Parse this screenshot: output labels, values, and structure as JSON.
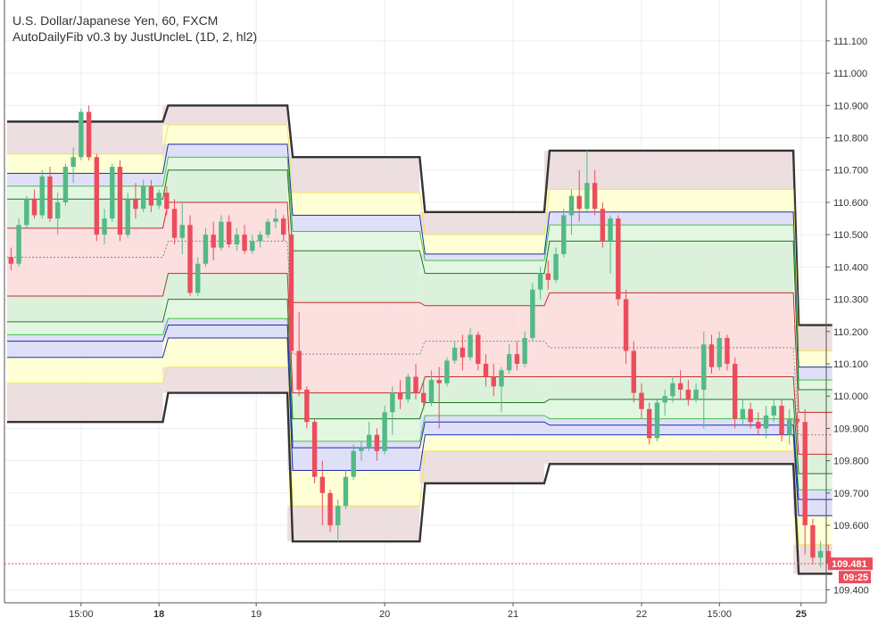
{
  "chart_data": {
    "type": "candlestick",
    "title": "U.S. Dollar/Japanese Yen, 60, FXCM",
    "subtitle": "AutoDailyFib v0.3 by JustUncleL (1D, 2, hl2)",
    "ylim": [
      109.36,
      111.21
    ],
    "xlim": [
      0,
      105
    ],
    "grid": true,
    "y_ticks": [
      {
        "v": 111.1,
        "label": "111.100"
      },
      {
        "v": 111.0,
        "label": "111.000"
      },
      {
        "v": 110.9,
        "label": "110.900"
      },
      {
        "v": 110.8,
        "label": "110.800"
      },
      {
        "v": 110.7,
        "label": "110.700"
      },
      {
        "v": 110.6,
        "label": "110.600"
      },
      {
        "v": 110.5,
        "label": "110.500"
      },
      {
        "v": 110.4,
        "label": "110.400"
      },
      {
        "v": 110.3,
        "label": "110.300"
      },
      {
        "v": 110.2,
        "label": "110.200"
      },
      {
        "v": 110.1,
        "label": "110.100"
      },
      {
        "v": 110.0,
        "label": "110.000"
      },
      {
        "v": 109.9,
        "label": "109.900"
      },
      {
        "v": 109.8,
        "label": "109.800"
      },
      {
        "v": 109.7,
        "label": "109.700"
      },
      {
        "v": 109.6,
        "label": "109.600"
      },
      {
        "v": 109.4,
        "label": "109.400"
      }
    ],
    "x_ticks": [
      {
        "x": 9.5,
        "label": "15:00",
        "bold": false
      },
      {
        "x": 19.5,
        "label": "18",
        "bold": true
      },
      {
        "x": 32,
        "label": "19",
        "bold": false
      },
      {
        "x": 48.5,
        "label": "20",
        "bold": false
      },
      {
        "x": 65,
        "label": "21",
        "bold": false
      },
      {
        "x": 81.5,
        "label": "22",
        "bold": false
      },
      {
        "x": 91.5,
        "label": "15:00",
        "bold": false
      },
      {
        "x": 102,
        "label": "25",
        "bold": true
      }
    ],
    "current_price": {
      "value": 109.481,
      "label": "109.481",
      "time_label": "09:25"
    },
    "colors": {
      "up": "#53b987",
      "down": "#eb4d5c",
      "grid": "#e9edf0",
      "axis": "#555555"
    },
    "fib_sessions": [
      {
        "x0": 0,
        "x1": 20,
        "levels": [
          110.85,
          110.75,
          110.69,
          110.65,
          110.61,
          110.52,
          110.43,
          110.31,
          110.23,
          110.19,
          110.17,
          110.12,
          110.04,
          109.92
        ]
      },
      {
        "x0": 20,
        "x1": 36,
        "levels": [
          110.9,
          110.84,
          110.78,
          110.74,
          110.7,
          110.6,
          110.48,
          110.38,
          110.3,
          110.24,
          110.22,
          110.18,
          110.09,
          110.01
        ]
      },
      {
        "x0": 36,
        "x1": 53,
        "levels": [
          110.74,
          110.63,
          110.56,
          110.51,
          110.45,
          110.29,
          110.13,
          110.01,
          109.93,
          109.86,
          109.84,
          109.77,
          109.66,
          109.55
        ]
      },
      {
        "x0": 53,
        "x1": 69,
        "levels": [
          110.57,
          110.5,
          110.44,
          110.42,
          110.38,
          110.28,
          110.17,
          110.06,
          109.98,
          109.94,
          109.92,
          109.88,
          109.83,
          109.73
        ]
      },
      {
        "x0": 69,
        "x1": 101,
        "levels": [
          110.76,
          110.64,
          110.57,
          110.53,
          110.48,
          110.32,
          110.15,
          110.06,
          109.99,
          109.93,
          109.91,
          109.88,
          109.83,
          109.79
        ]
      },
      {
        "x0": 101,
        "x1": 106,
        "levels": [
          110.22,
          110.14,
          110.09,
          110.05,
          110.02,
          109.95,
          109.88,
          109.82,
          109.76,
          109.71,
          109.68,
          109.63,
          109.54,
          109.45
        ]
      }
    ],
    "candles": [
      [
        110.43,
        110.46,
        110.39,
        110.41
      ],
      [
        110.41,
        110.55,
        110.4,
        110.53
      ],
      [
        110.53,
        110.62,
        110.52,
        110.61
      ],
      [
        110.61,
        110.64,
        110.55,
        110.56
      ],
      [
        110.56,
        110.7,
        110.55,
        110.68
      ],
      [
        110.68,
        110.71,
        110.54,
        110.55
      ],
      [
        110.55,
        110.63,
        110.5,
        110.6
      ],
      [
        110.6,
        110.72,
        110.59,
        110.71
      ],
      [
        110.71,
        110.77,
        110.66,
        110.74
      ],
      [
        110.74,
        110.89,
        110.73,
        110.88
      ],
      [
        110.88,
        110.9,
        110.73,
        110.74
      ],
      [
        110.74,
        110.75,
        110.48,
        110.5
      ],
      [
        110.5,
        110.58,
        110.47,
        110.55
      ],
      [
        110.55,
        110.72,
        110.54,
        110.71
      ],
      [
        110.71,
        110.73,
        110.48,
        110.5
      ],
      [
        110.5,
        110.63,
        110.49,
        110.61
      ],
      [
        110.61,
        110.66,
        110.55,
        110.58
      ],
      [
        110.58,
        110.67,
        110.57,
        110.65
      ],
      [
        110.65,
        110.67,
        110.57,
        110.59
      ],
      [
        110.59,
        110.64,
        110.58,
        110.63
      ],
      [
        110.63,
        110.65,
        110.56,
        110.58
      ],
      [
        110.58,
        110.61,
        110.47,
        110.49
      ],
      [
        110.49,
        110.6,
        110.44,
        110.53
      ],
      [
        110.53,
        110.56,
        110.31,
        110.32
      ],
      [
        110.32,
        110.43,
        110.31,
        110.41
      ],
      [
        110.41,
        110.52,
        110.4,
        110.5
      ],
      [
        110.5,
        110.54,
        110.42,
        110.46
      ],
      [
        110.46,
        110.56,
        110.45,
        110.54
      ],
      [
        110.54,
        110.56,
        110.46,
        110.47
      ],
      [
        110.47,
        110.52,
        110.45,
        110.5
      ],
      [
        110.5,
        110.53,
        110.44,
        110.45
      ],
      [
        110.45,
        110.5,
        110.44,
        110.48
      ],
      [
        110.48,
        110.51,
        110.46,
        110.5
      ],
      [
        110.5,
        110.55,
        110.49,
        110.54
      ],
      [
        110.54,
        110.58,
        110.52,
        110.55
      ],
      [
        110.55,
        110.56,
        110.48,
        110.5
      ],
      [
        110.5,
        110.52,
        110.12,
        110.14
      ],
      [
        110.14,
        110.26,
        110.0,
        110.02
      ],
      [
        110.02,
        110.03,
        109.9,
        109.92
      ],
      [
        109.92,
        109.93,
        109.73,
        109.75
      ],
      [
        109.75,
        109.8,
        109.6,
        109.7
      ],
      [
        109.7,
        109.71,
        109.58,
        109.6
      ],
      [
        109.6,
        109.68,
        109.55,
        109.66
      ],
      [
        109.66,
        109.77,
        109.65,
        109.75
      ],
      [
        109.75,
        109.85,
        109.74,
        109.83
      ],
      [
        109.83,
        109.86,
        109.8,
        109.84
      ],
      [
        109.84,
        109.92,
        109.83,
        109.88
      ],
      [
        109.88,
        109.9,
        109.8,
        109.83
      ],
      [
        109.83,
        109.97,
        109.82,
        109.95
      ],
      [
        109.95,
        110.03,
        109.88,
        110.01
      ],
      [
        110.01,
        110.05,
        109.96,
        109.99
      ],
      [
        109.99,
        110.07,
        109.98,
        110.06
      ],
      [
        110.06,
        110.1,
        109.99,
        110.01
      ],
      [
        110.01,
        110.05,
        109.96,
        109.98
      ],
      [
        109.98,
        110.08,
        109.97,
        110.05
      ],
      [
        110.05,
        110.09,
        109.9,
        110.04
      ],
      [
        110.04,
        110.12,
        110.03,
        110.11
      ],
      [
        110.11,
        110.17,
        110.1,
        110.15
      ],
      [
        110.15,
        110.19,
        110.08,
        110.12
      ],
      [
        110.12,
        110.21,
        110.11,
        110.19
      ],
      [
        110.19,
        110.2,
        110.08,
        110.1
      ],
      [
        110.1,
        110.13,
        110.03,
        110.06
      ],
      [
        110.06,
        110.1,
        110.0,
        110.03
      ],
      [
        110.03,
        110.09,
        109.95,
        110.08
      ],
      [
        110.08,
        110.16,
        110.07,
        110.13
      ],
      [
        110.13,
        110.17,
        110.08,
        110.1
      ],
      [
        110.1,
        110.2,
        110.09,
        110.18
      ],
      [
        110.18,
        110.35,
        110.17,
        110.33
      ],
      [
        110.33,
        110.4,
        110.3,
        110.38
      ],
      [
        110.38,
        110.42,
        110.33,
        110.36
      ],
      [
        110.36,
        110.46,
        110.35,
        110.44
      ],
      [
        110.44,
        110.58,
        110.43,
        110.56
      ],
      [
        110.56,
        110.64,
        110.5,
        110.62
      ],
      [
        110.62,
        110.7,
        110.54,
        110.58
      ],
      [
        110.58,
        110.76,
        110.57,
        110.66
      ],
      [
        110.66,
        110.7,
        110.56,
        110.58
      ],
      [
        110.58,
        110.6,
        110.46,
        110.48
      ],
      [
        110.48,
        110.56,
        110.38,
        110.55
      ],
      [
        110.55,
        110.56,
        110.28,
        110.3
      ],
      [
        110.3,
        110.33,
        110.1,
        110.14
      ],
      [
        110.14,
        110.17,
        109.98,
        110.01
      ],
      [
        110.01,
        110.04,
        109.93,
        109.96
      ],
      [
        109.96,
        109.98,
        109.85,
        109.87
      ],
      [
        109.87,
        109.99,
        109.86,
        109.98
      ],
      [
        109.98,
        110.02,
        109.94,
        110.0
      ],
      [
        110.0,
        110.06,
        109.98,
        110.04
      ],
      [
        110.04,
        110.08,
        109.99,
        110.02
      ],
      [
        110.02,
        110.05,
        109.97,
        109.99
      ],
      [
        109.99,
        110.04,
        109.98,
        110.02
      ],
      [
        110.02,
        110.2,
        109.9,
        110.16
      ],
      [
        110.16,
        110.19,
        110.07,
        110.09
      ],
      [
        110.09,
        110.2,
        110.08,
        110.18
      ],
      [
        110.18,
        110.19,
        110.08,
        110.1
      ],
      [
        110.1,
        110.12,
        109.9,
        109.93
      ],
      [
        109.93,
        109.99,
        109.91,
        109.96
      ],
      [
        109.96,
        109.98,
        109.9,
        109.92
      ],
      [
        109.92,
        109.95,
        109.88,
        109.9
      ],
      [
        109.9,
        109.97,
        109.87,
        109.94
      ],
      [
        109.94,
        109.99,
        109.92,
        109.97
      ],
      [
        109.97,
        109.99,
        109.86,
        109.88
      ],
      [
        109.88,
        109.96,
        109.85,
        109.93
      ],
      [
        109.93,
        109.95,
        109.9,
        109.92
      ],
      [
        109.92,
        109.96,
        109.51,
        109.6
      ],
      [
        109.6,
        109.62,
        109.48,
        109.5
      ],
      [
        109.5,
        109.55,
        109.47,
        109.52
      ],
      [
        109.52,
        109.54,
        109.48,
        109.48
      ]
    ]
  }
}
